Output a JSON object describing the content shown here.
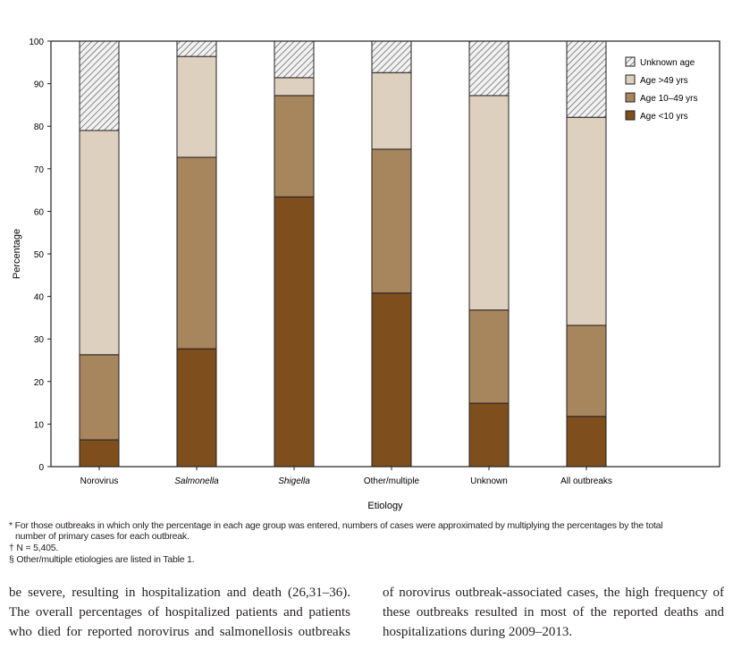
{
  "chart_data": {
    "type": "bar",
    "stacked": true,
    "xlabel": "Etiology",
    "ylabel": "Percentage",
    "ylim": [
      0,
      100
    ],
    "yticks": [
      0,
      10,
      20,
      30,
      40,
      50,
      60,
      70,
      80,
      90,
      100
    ],
    "grid": false,
    "legend_position": "top-right",
    "categories": [
      "Norovirus",
      "Salmonella",
      "Shigella",
      "Other/multiple",
      "Unknown",
      "All outbreaks"
    ],
    "italic_categories": [
      "Salmonella",
      "Shigella"
    ],
    "series": [
      {
        "name": "Age <10 yrs",
        "color": "#7e4f1c",
        "values": [
          6.3,
          27.7,
          63.4,
          40.8,
          14.9,
          11.8
        ]
      },
      {
        "name": "Age 10–49 yrs",
        "color": "#a8865d",
        "values": [
          20.0,
          45.0,
          23.8,
          33.8,
          21.9,
          21.4
        ]
      },
      {
        "name": "Age >49 yrs",
        "color": "#ddd0be",
        "values": [
          52.7,
          23.7,
          4.2,
          18.0,
          50.4,
          48.9
        ]
      },
      {
        "name": "Unknown age",
        "color": "hatched",
        "values": [
          21.0,
          3.6,
          8.6,
          7.4,
          12.8,
          17.9
        ]
      }
    ],
    "legend_order": [
      "Unknown age",
      "Age >49 yrs",
      "Age 10–49 yrs",
      "Age <10 yrs"
    ]
  },
  "footnotes": [
    "* For those outbreaks in which only the percentage in each age group was entered, numbers of cases were approximated by multiplying the percentages by the total",
    "number of primary cases for each outbreak.",
    "† N = 5,405.",
    "§ Other/multiple etiologies are listed in Table 1."
  ],
  "body": {
    "left": [
      "be severe, resulting in hospitalization and death (26,31–36).",
      "The overall percentages of hospitalized patients and patients",
      "who died for reported norovirus and salmonellosis outbreaks"
    ],
    "right": [
      "of norovirus outbreak-associated cases, the high frequency of",
      "these outbreaks resulted in most of the reported deaths and",
      "hospitalizations during 2009–2013."
    ]
  }
}
